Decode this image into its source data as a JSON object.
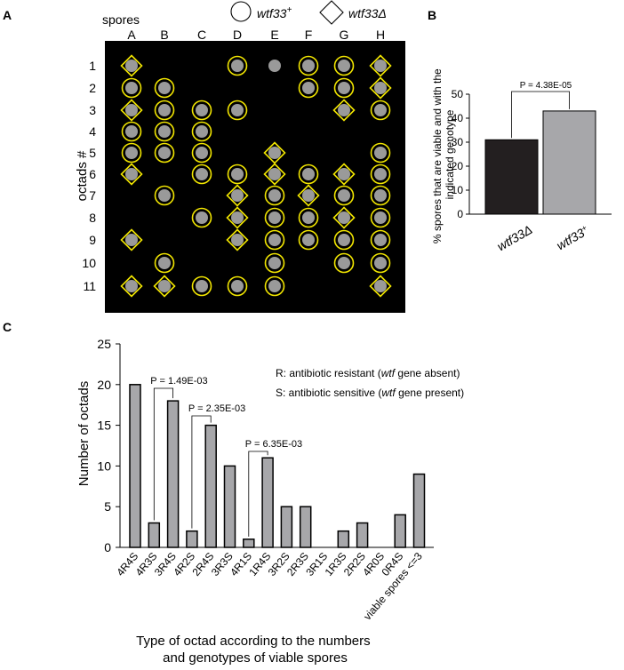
{
  "panels": {
    "a": {
      "letter": "A",
      "spores_label": "spores",
      "legend_plus": "wtf33",
      "legend_plus_sup": "+",
      "legend_delta": "wtf33Δ",
      "y_label": "octads #",
      "columns": [
        "A",
        "B",
        "C",
        "D",
        "E",
        "F",
        "G",
        "H"
      ],
      "rows": [
        "1",
        "2",
        "3",
        "4",
        "5",
        "6",
        "7",
        "8",
        "9",
        "10",
        "11"
      ],
      "grid": [
        "D..COCCD",
        "CC...CCD",
        "DCCC..DC",
        "CCC.....",
        "CCC.D..C",
        "D.CCDCDC",
        ".C.DCDCC",
        "..CDCCDC",
        "D..DCCCC",
        ".C..C.CC",
        "DDCCC..D"
      ],
      "grid_legend": {
        "C": "wtf33+ (circle)",
        "D": "wtf33Δ (diamond)",
        "O": "unmarked colony",
        ".": "no colony"
      },
      "colors": {
        "background": "#000000",
        "colony": "#9a9a9a",
        "outline": "#f2e600"
      }
    },
    "b": {
      "letter": "B"
    },
    "c": {
      "letter": "C"
    }
  },
  "chart_data": [
    {
      "type": "bar",
      "categories": [
        "wtf33Δ",
        "wtf33+"
      ],
      "values": [
        31,
        43
      ],
      "ylabel": "% spores that are viable and with the indicated genotype",
      "yticks": [
        0,
        10,
        20,
        30,
        40,
        50
      ],
      "ylim": [
        0,
        50
      ],
      "bar_colors": [
        "#231f20",
        "#a7a7aa"
      ],
      "annotation": "P = 4.38E-05"
    },
    {
      "type": "bar",
      "categories": [
        "4R4S",
        "4R3S",
        "3R4S",
        "4R2S",
        "2R4S",
        "3R3S",
        "4R1S",
        "1R4S",
        "3R2S",
        "2R3S",
        "3R1S",
        "1R3S",
        "2R2S",
        "4R0S",
        "0R4S",
        "viable spores <=3"
      ],
      "values": [
        20,
        3,
        18,
        2,
        15,
        10,
        1,
        11,
        5,
        5,
        0,
        2,
        3,
        0,
        4,
        9
      ],
      "ylabel": "Number of octads",
      "xlabel": [
        "Type of octad according to the numbers",
        "and genotypes of viable spores"
      ],
      "yticks": [
        0,
        5,
        10,
        15,
        20,
        25
      ],
      "ylim": [
        0,
        25
      ],
      "bar_color": "#a7a7aa",
      "legend": {
        "r_text": "R: antibiotic resistant (wtf gene absent)",
        "s_text": "S: antibiotic sensitive (wtf gene present)"
      },
      "comparisons": [
        {
          "label": "P = 1.49E-03",
          "from": "4R3S",
          "to": "3R4S"
        },
        {
          "label": "P = 2.35E-03",
          "from": "4R2S",
          "to": "2R4S"
        },
        {
          "label": "P = 6.35E-03",
          "from": "4R1S",
          "to": "1R4S"
        }
      ]
    }
  ]
}
